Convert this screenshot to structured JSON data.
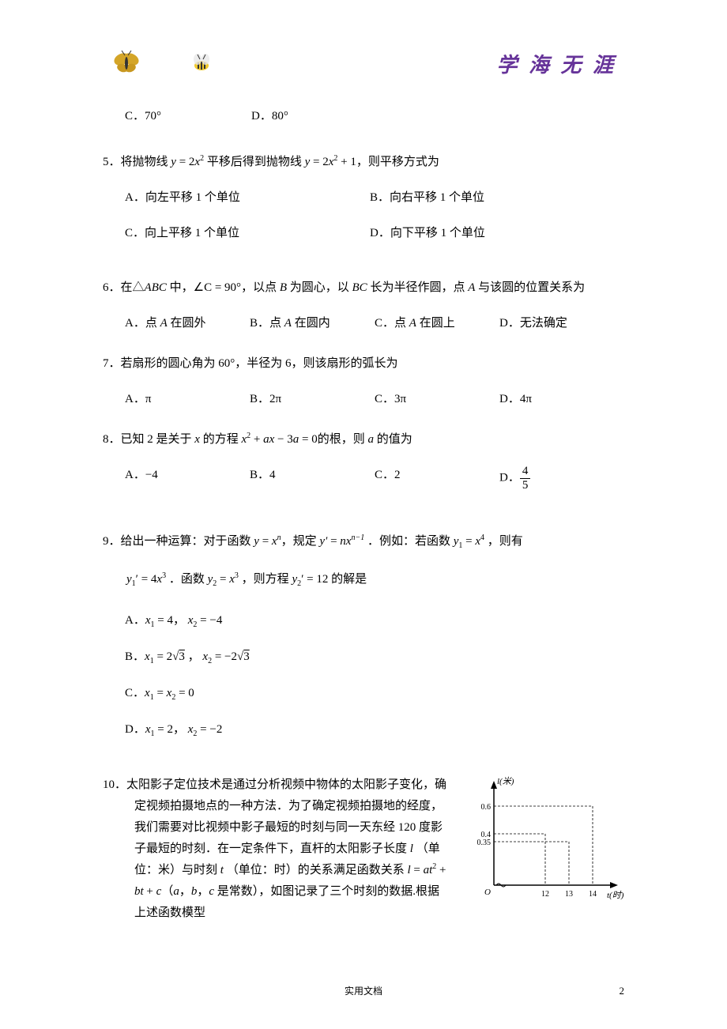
{
  "header": {
    "motto": "学 海 无 涯"
  },
  "q_cd": {
    "c_label": "C．",
    "c_value": "70°",
    "d_label": "D．",
    "d_value": "80°"
  },
  "q5": {
    "num": "5．",
    "text_1": "将抛物线 ",
    "eq1_lhs": "y",
    "eq1_eq": " = ",
    "eq1_rhs_coef": "2",
    "eq1_rhs_var": "x",
    "eq1_rhs_exp": "2",
    "text_2": " 平移后得到抛物线 ",
    "eq2_lhs": "y",
    "eq2_eq": " = ",
    "eq2_rhs_coef": "2",
    "eq2_rhs_var": "x",
    "eq2_rhs_exp": "2",
    "eq2_plus": " + 1",
    "text_3": "，则平移方式为",
    "opts": {
      "a": "A．向左平移 1 个单位",
      "b": "B．向右平移 1 个单位",
      "c": "C．向上平移 1 个单位",
      "d": "D．向下平移 1 个单位"
    }
  },
  "q6": {
    "num": "6．",
    "text_1": "在△",
    "abc": "ABC",
    "text_2": " 中，",
    "angle": "∠C",
    "eq": " = 90°",
    "text_3": "，以点 ",
    "b": "B",
    "text_4": " 为圆心，以 ",
    "bc": "BC",
    "text_5": " 长为半径作圆，点 ",
    "a": "A",
    "text_6": " 与该圆的位置关系为",
    "opts": {
      "a_pre": "A．点 ",
      "a_it": "A",
      "a_post": " 在圆外",
      "b_pre": "B．点 ",
      "b_it": "A",
      "b_post": " 在圆内",
      "c_pre": "C．点 ",
      "c_it": "A",
      "c_post": " 在圆上",
      "d": "D．无法确定"
    }
  },
  "q7": {
    "num": "7．",
    "text": "若扇形的圆心角为 60°，半径为 6，则该扇形的弧长为",
    "opts": {
      "a_label": "A．",
      "a_val": "π",
      "b_label": "B．",
      "b_val": "2π",
      "c_label": "C．",
      "c_val": "3π",
      "d_label": "D．",
      "d_val": "4π"
    }
  },
  "q8": {
    "num": "8．",
    "text_1": "已知 2 是关于 ",
    "x1": "x",
    "text_2": " 的方程 ",
    "x2": "x",
    "exp": "2",
    "plus1": " + ",
    "ax": "ax",
    "minus": " − 3",
    "a": "a",
    "eq0": " = 0",
    "text_3": "的根，则",
    "a2": " a ",
    "text_4": "的值为",
    "opts": {
      "a_label": "A．",
      "a_val": "−4",
      "b_label": "B．",
      "b_val": "4",
      "c_label": "C．",
      "c_val": "2",
      "d_label": "D．",
      "d_num": "4",
      "d_den": "5"
    }
  },
  "q9": {
    "num": "9．",
    "text_1": "给出一种运算：对于函数 ",
    "y": "y",
    "eq1": " = ",
    "x": "x",
    "n": "n",
    "text_2": "，规定 ",
    "yp": "y′",
    "eq2": " = ",
    "nvar": "n",
    "x2": "x",
    "nm1": "n−1",
    "text_3": " ．例如：若函数 ",
    "y1": "y",
    "sub1": "1",
    "eq3": " = ",
    "x3": "x",
    "exp4": "4",
    "text_4": " ，则有",
    "line2_y1p": "y",
    "line2_sub1": "1",
    "line2_prime": "′",
    "line2_eq": " = 4",
    "line2_x": "x",
    "line2_exp3": "3",
    "line2_dot": " ．函数 ",
    "line2_y2": "y",
    "line2_sub2": "2",
    "line2_eq2": " = ",
    "line2_x2": "x",
    "line2_exp3b": "3",
    "line2_text": " ，则方程 ",
    "line2_y2p": "y",
    "line2_sub2b": "2",
    "line2_prime2": "′",
    "line2_eq12": " = 12 的解是",
    "opts": {
      "a_label": "A．",
      "a_x1": "x",
      "a_s1": "1",
      "a_e1": " = 4， ",
      "a_x2": "x",
      "a_s2": "2",
      "a_e2": " = −4",
      "b_label": "B．",
      "b_x1": "x",
      "b_s1": "1",
      "b_e1": " = 2",
      "b_sqrt1": "√",
      "b_r1": "3",
      "b_comma": " ， ",
      "b_x2": "x",
      "b_s2": "2",
      "b_e2": " = −2",
      "b_sqrt2": "√",
      "b_r2": "3",
      "c_label": "C．",
      "c_x1": "x",
      "c_s1": "1",
      "c_eq": " = ",
      "c_x2": "x",
      "c_s2": "2",
      "c_e": " = 0",
      "d_label": "D．",
      "d_x1": "x",
      "d_s1": "1",
      "d_e1": " = 2， ",
      "d_x2": "x",
      "d_s2": "2",
      "d_e2": " = −2"
    }
  },
  "q10": {
    "num": "10．",
    "text_1": "太阳影子定位技术是通过分析视频中物体的太阳影子变化，确定视频拍摄地点的一种方法．为了确定视频拍摄地的经度，我们需要对比视频中影子最短的时刻与同一天东经 120 度影子最短的时刻．在一定条件下，直杆的太阳影子长度 ",
    "l": "l",
    "text_2": " （单位：米）与时刻 ",
    "t": "t",
    "text_3": " （单位：时）的关系满足函数关系 ",
    "l2": "l",
    "eq": " = ",
    "at": "at",
    "exp2": "2",
    "plus": " + ",
    "bt": "bt",
    "plusc": " + ",
    "c": "c",
    "paren_open": "（",
    "a": "a",
    "comma1": "，",
    "b": "b",
    "comma2": "，",
    "c2": "c",
    "text_4": " 是常数），如图记录了三个时刻的数据.根据上述函数模型"
  },
  "q10_chart": {
    "ylabel": "l(米)",
    "xlabel": "t(时)",
    "y_ticks": [
      "0.6",
      "0.4",
      "0.35"
    ],
    "y_positions": [
      40,
      75,
      85
    ],
    "x_ticks": [
      "12",
      "13",
      "14"
    ],
    "x_positions": [
      100,
      130,
      160
    ],
    "points": [
      {
        "x": 100,
        "y": 75
      },
      {
        "x": 130,
        "y": 85
      },
      {
        "x": 160,
        "y": 40
      }
    ],
    "axis_color": "#000000",
    "dash_color": "#000000",
    "origin_label": "O"
  },
  "footer": {
    "text": "实用文档",
    "page": "2"
  }
}
